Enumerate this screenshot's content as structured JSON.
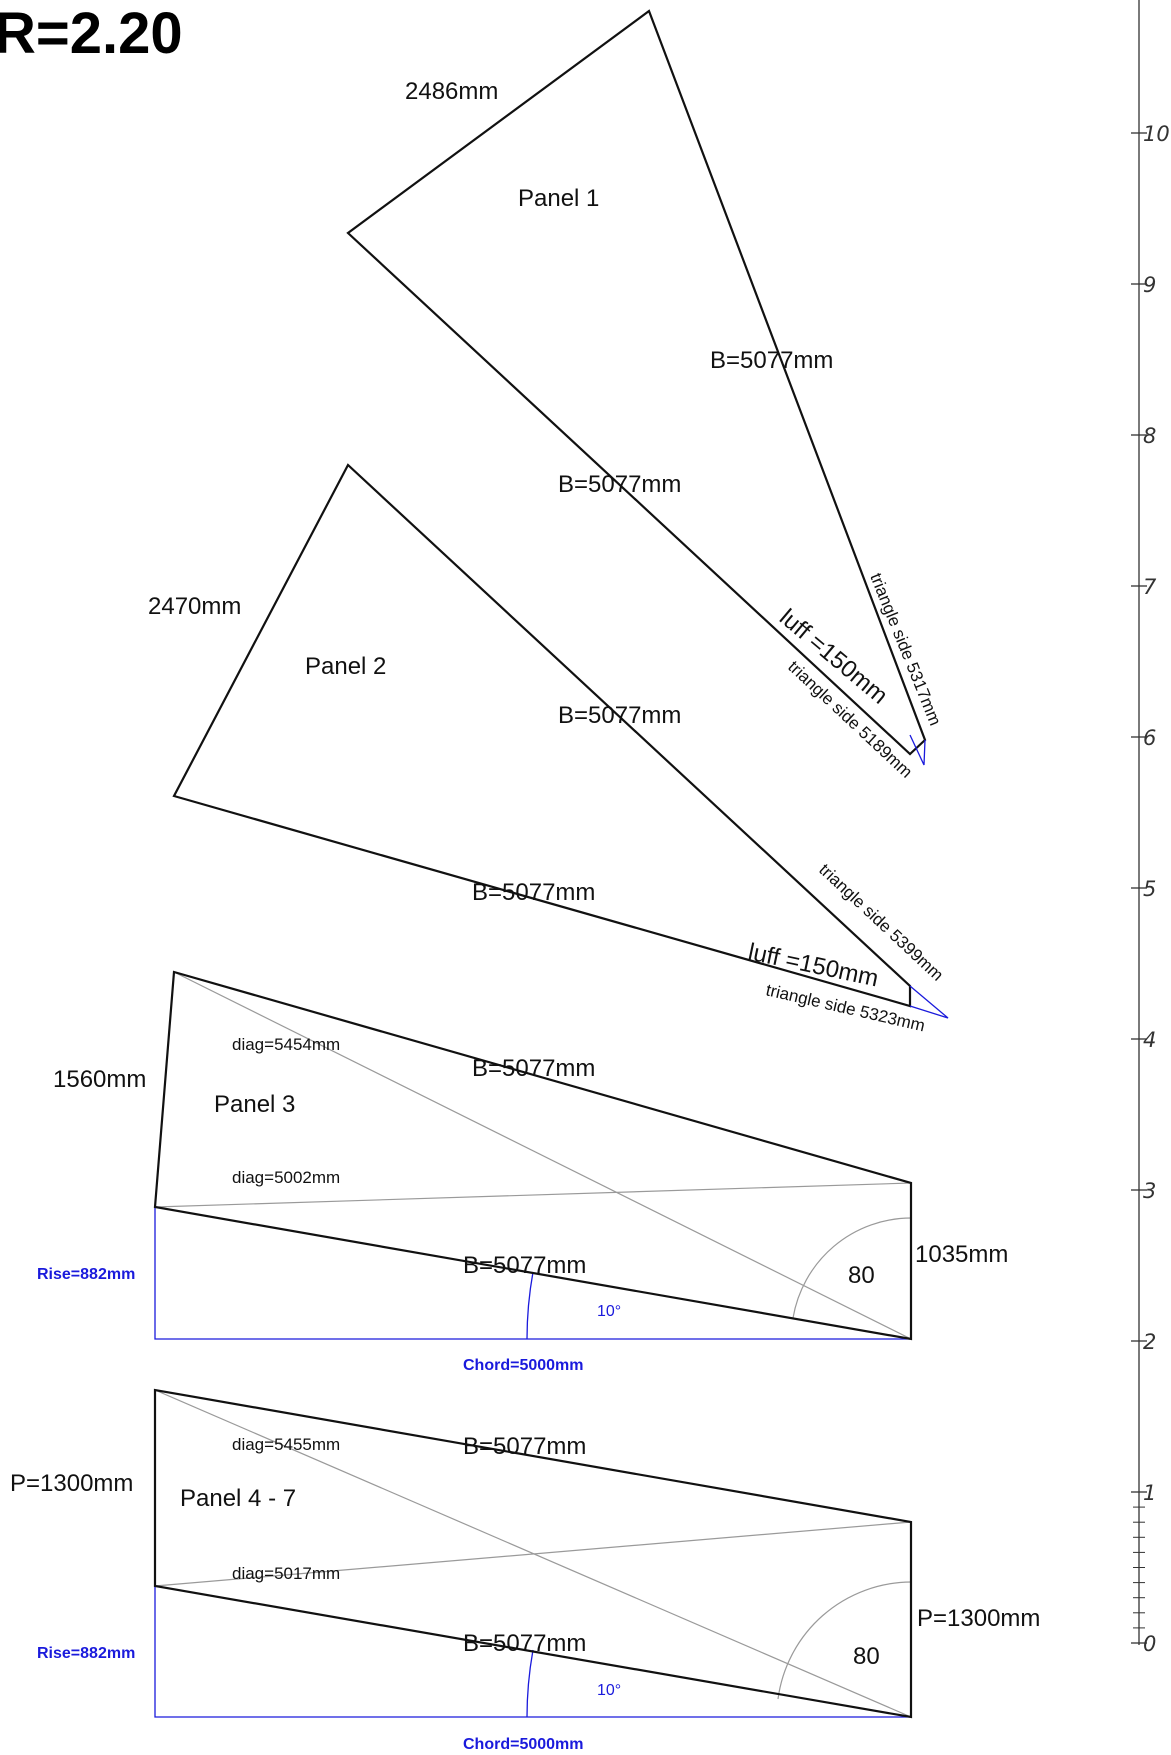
{
  "title": "R=2.20",
  "panel1": {
    "name": "Panel 1",
    "top_edge": "2486mm",
    "b_right": "B=5077mm",
    "b_left": "B=5077mm",
    "luff": "luff =150mm",
    "tri_a": "triangle side 5317mm",
    "tri_b": "triangle side 5189mm"
  },
  "panel2": {
    "name": "Panel 2",
    "top_edge": "2470mm",
    "b_top": "B=5077mm",
    "b_bottom": "B=5077mm",
    "luff": "luff =150mm",
    "tri_a": "triangle side 5399mm",
    "tri_b": "triangle side 5323mm"
  },
  "panel3": {
    "name": "Panel 3",
    "left_edge": "1560mm",
    "right_edge": "1035mm",
    "b_top": "B=5077mm",
    "b_bottom": "B=5077mm",
    "diag1": "diag=5454mm",
    "diag2": "diag=5002mm",
    "angle": "80",
    "rise": "Rise=882mm",
    "chord": "Chord=5000mm",
    "deg": "10°"
  },
  "panel4": {
    "name": "Panel 4 - 7",
    "left_edge": "P=1300mm",
    "right_edge": "P=1300mm",
    "b_top": "B=5077mm",
    "b_bottom": "B=5077mm",
    "diag1": "diag=5455mm",
    "diag2": "diag=5017mm",
    "angle": "80",
    "rise": "Rise=882mm",
    "chord": "Chord=5000mm",
    "deg": "10°"
  },
  "ruler": {
    "labels": [
      "0",
      "1",
      "2",
      "3",
      "4",
      "5",
      "6",
      "7",
      "8",
      "9",
      "10"
    ]
  }
}
